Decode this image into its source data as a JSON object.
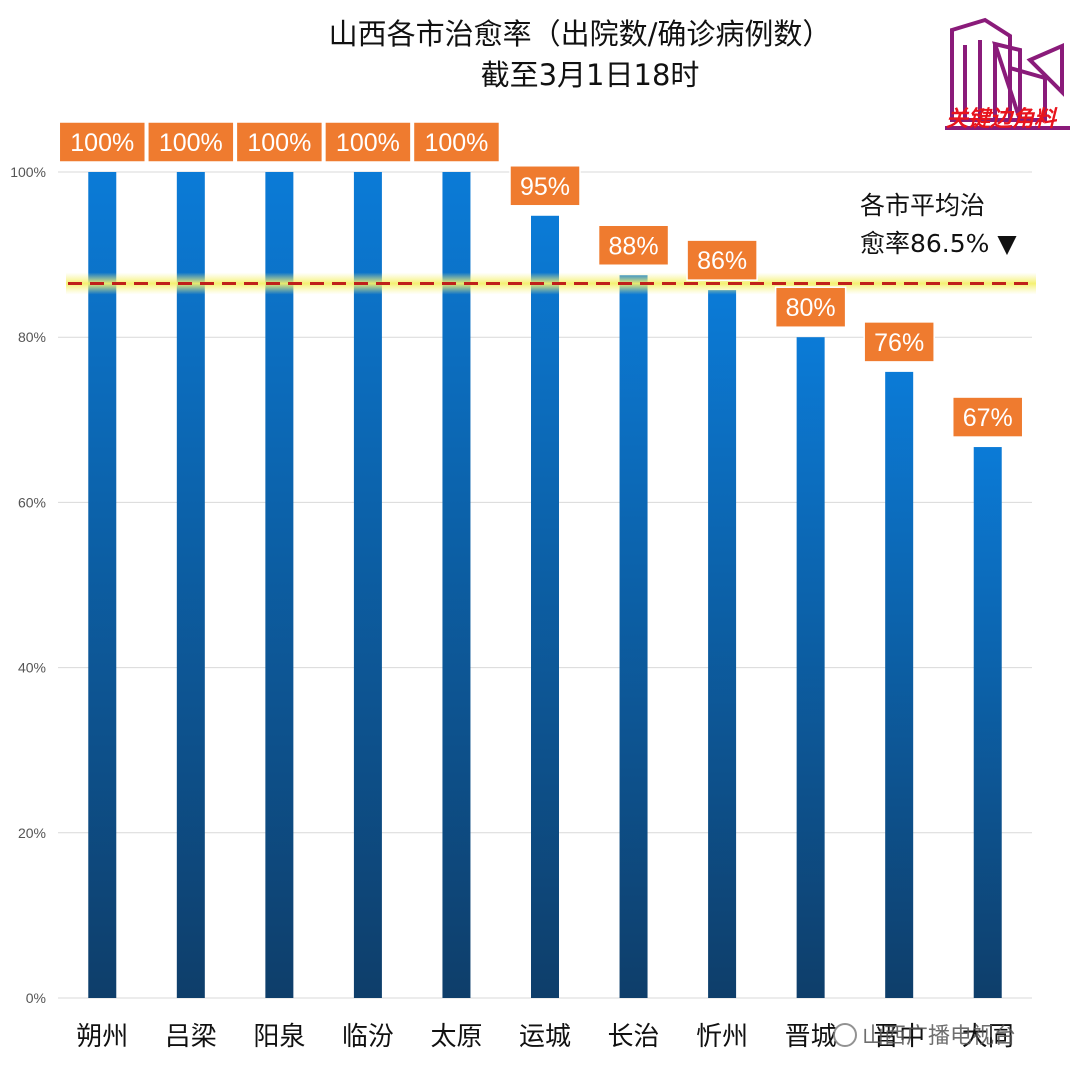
{
  "chart_data": {
    "type": "bar",
    "title": "山西各市治愈率（出院数/确诊病例数）",
    "subtitle": "截至3月1日18时",
    "categories": [
      "朔州",
      "吕梁",
      "阳泉",
      "临汾",
      "太原",
      "运城",
      "长治",
      "忻州",
      "晋城",
      "晋中",
      "大同"
    ],
    "values": [
      100,
      100,
      100,
      100,
      100,
      94.7,
      87.5,
      85.7,
      80,
      75.8,
      66.7
    ],
    "data_labels": [
      "100%",
      "100%",
      "100%",
      "100%",
      "100%",
      "95%",
      "88%",
      "86%",
      "80%",
      "76%",
      "67%"
    ],
    "ylim": [
      0,
      100
    ],
    "yticks": [
      0,
      20,
      40,
      60,
      80,
      100
    ],
    "ytick_labels": [
      "0%",
      "20%",
      "40%",
      "60%",
      "80%",
      "100%"
    ],
    "grid": true,
    "reference_line": {
      "value": 86.5,
      "label_line1": "各市平均治",
      "label_line2": "愈率86.5% ▼"
    },
    "colors": {
      "bar_top": "#0b7bd7",
      "bar_bottom": "#0e3e6a",
      "label_fill": "#ef7b2f",
      "ref_line": "#c0201a",
      "ref_glow": "#f4f06a"
    }
  },
  "watermark": {
    "text": "关键边角料"
  },
  "footer": {
    "text": "山西广播电视台"
  }
}
